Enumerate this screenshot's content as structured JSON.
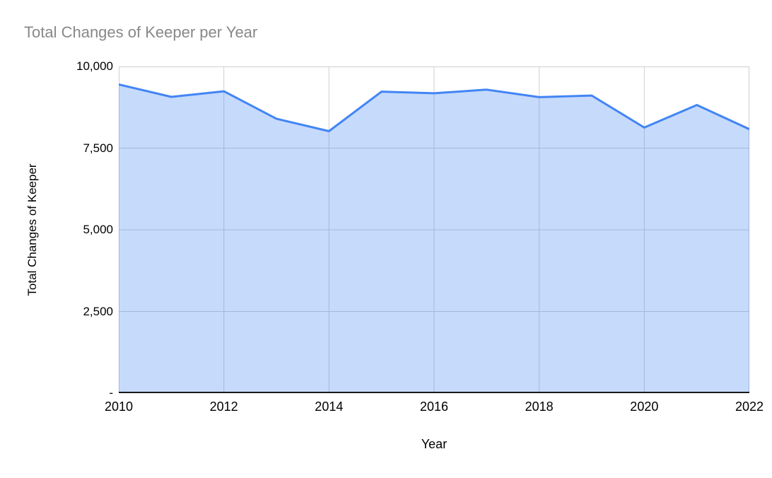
{
  "chart_data": {
    "type": "area",
    "title": "Total Changes of Keeper per Year",
    "xlabel": "Year",
    "ylabel": "Total Changes of Keeper",
    "x": [
      2010,
      2011,
      2012,
      2013,
      2014,
      2015,
      2016,
      2017,
      2018,
      2019,
      2020,
      2021,
      2022
    ],
    "series": [
      {
        "name": "Total Changes of Keeper",
        "values": [
          9450,
          9070,
          9240,
          8400,
          8020,
          9230,
          9180,
          9290,
          9060,
          9110,
          8130,
          8820,
          8080
        ]
      }
    ],
    "xlim": [
      2010,
      2022
    ],
    "ylim": [
      0,
      10000
    ],
    "xticks": [
      {
        "value": 2010,
        "label": "2010"
      },
      {
        "value": 2012,
        "label": "2012"
      },
      {
        "value": 2014,
        "label": "2014"
      },
      {
        "value": 2016,
        "label": "2016"
      },
      {
        "value": 2018,
        "label": "2018"
      },
      {
        "value": 2020,
        "label": "2020"
      },
      {
        "value": 2022,
        "label": "2022"
      }
    ],
    "yticks": [
      {
        "value": 10000,
        "label": "10,000"
      },
      {
        "value": 7500,
        "label": "7,500"
      },
      {
        "value": 5000,
        "label": "5,000"
      },
      {
        "value": 2500,
        "label": "2,500"
      },
      {
        "value": 0,
        "label": "-"
      }
    ],
    "grid": true,
    "legend_position": "none",
    "colors": {
      "series_line": "#4285f4",
      "series_fill": "#4285f4",
      "fill_opacity": 0.3,
      "grid": "#cfcfcf",
      "axis_line": "#1a1a1a",
      "title_text": "#888888",
      "tick_text": "#000000"
    }
  }
}
